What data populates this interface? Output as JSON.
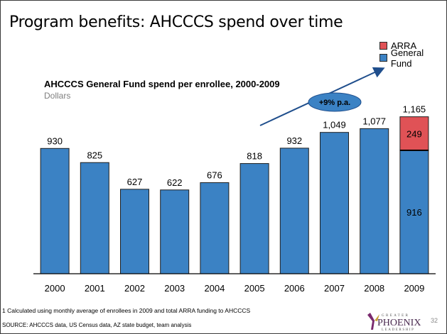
{
  "slide": {
    "title": "Program benefits: AHCCCS spend over time",
    "footnote": "1 Calculated using monthly average of enrollees in 2009 and total ARRA funding to AHCCCS",
    "source": "SOURCE: AHCCCS data, US Census data, AZ state budget, team analysis",
    "page_number": "32",
    "logo": {
      "text_top": "GREATER",
      "text_main": "PHOENIX",
      "text_bottom": "LEADERSHIP"
    }
  },
  "chart_data": {
    "type": "bar",
    "title": "AHCCCS General Fund spend per enrollee, 2000-2009",
    "subtitle": "Dollars",
    "categories": [
      "2000",
      "2001",
      "2002",
      "2003",
      "2004",
      "2005",
      "2006",
      "2007",
      "2008",
      "2009"
    ],
    "series": [
      {
        "name": "General Fund",
        "color": "#3b82c4",
        "values": [
          930,
          825,
          627,
          622,
          676,
          818,
          932,
          1049,
          1077,
          916
        ]
      },
      {
        "name": "ARRA",
        "color": "#e05256",
        "values": [
          0,
          0,
          0,
          0,
          0,
          0,
          0,
          0,
          0,
          249
        ]
      }
    ],
    "totals": [
      "930",
      "825",
      "627",
      "622",
      "676",
      "818",
      "932",
      "1,049",
      "1,077",
      "1,165"
    ],
    "segment_labels": [
      {
        "category": "2009",
        "series": "ARRA",
        "label": "249"
      },
      {
        "category": "2009",
        "series": "General Fund",
        "label": "916"
      }
    ],
    "annotation": {
      "label": "+9% p.a.",
      "type": "growth-arrow"
    },
    "ylim": [
      0,
      1300
    ],
    "legend_position": "top-right",
    "grid": false
  }
}
